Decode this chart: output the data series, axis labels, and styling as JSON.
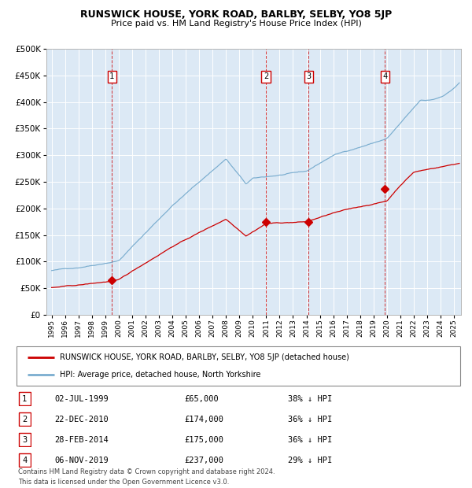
{
  "title": "RUNSWICK HOUSE, YORK ROAD, BARLBY, SELBY, YO8 5JP",
  "subtitle": "Price paid vs. HM Land Registry's House Price Index (HPI)",
  "legend_red": "RUNSWICK HOUSE, YORK ROAD, BARLBY, SELBY, YO8 5JP (detached house)",
  "legend_blue": "HPI: Average price, detached house, North Yorkshire",
  "footer": "Contains HM Land Registry data © Crown copyright and database right 2024.\nThis data is licensed under the Open Government Licence v3.0.",
  "transactions": [
    {
      "num": 1,
      "date": "02-JUL-1999",
      "price": 65000,
      "pct": "38% ↓ HPI",
      "year": 1999.5
    },
    {
      "num": 2,
      "date": "22-DEC-2010",
      "price": 174000,
      "pct": "36% ↓ HPI",
      "year": 2010.97
    },
    {
      "num": 3,
      "date": "28-FEB-2014",
      "price": 175000,
      "pct": "36% ↓ HPI",
      "year": 2014.16
    },
    {
      "num": 4,
      "date": "06-NOV-2019",
      "price": 237000,
      "pct": "29% ↓ HPI",
      "year": 2019.85
    }
  ],
  "plot_bg": "#dce9f5",
  "red_color": "#cc0000",
  "blue_color": "#7aadcf",
  "grid_color": "#ffffff",
  "ylim": [
    0,
    500000
  ],
  "xlim_start": 1994.6,
  "xlim_end": 2025.5,
  "yticks": [
    0,
    50000,
    100000,
    150000,
    200000,
    250000,
    300000,
    350000,
    400000,
    450000,
    500000
  ],
  "xticks_start": 1995,
  "xticks_end": 2025
}
